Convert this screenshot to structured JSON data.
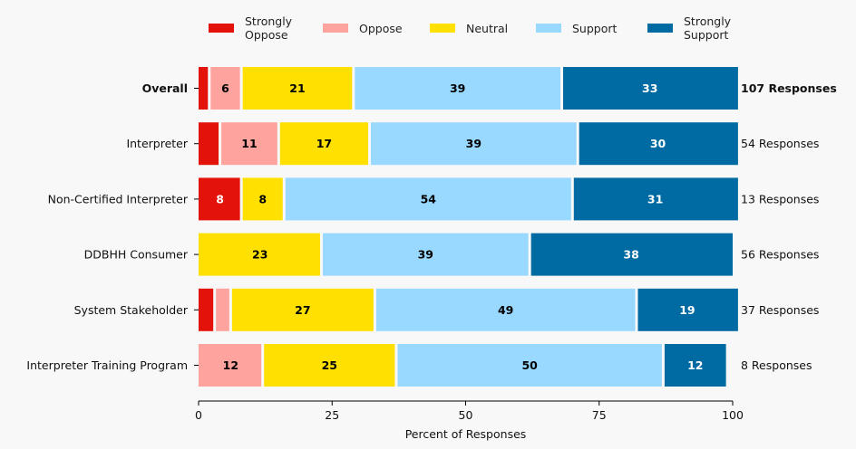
{
  "legend": [
    {
      "label": "Strongly\nOppose",
      "color": "#e3120b"
    },
    {
      "label": "Oppose",
      "color": "#ffa39e"
    },
    {
      "label": "Neutral",
      "color": "#ffe000"
    },
    {
      "label": "Support",
      "color": "#99d8ff"
    },
    {
      "label": "Strongly\nSupport",
      "color": "#006ba2"
    }
  ],
  "chart_data": {
    "type": "bar",
    "orientation": "horizontal-stacked",
    "xlabel": "Percent of Responses",
    "xlim": [
      0,
      100
    ],
    "xticks": [
      "0",
      "25",
      "50",
      "75",
      "100"
    ],
    "categories": [
      "Overall",
      "Interpreter",
      "Non-Certified Interpreter",
      "DDBHH Consumer",
      "System Stakeholder",
      "Interpreter Training Program"
    ],
    "bold_categories": [
      "Overall"
    ],
    "response_counts": [
      "107 Responses",
      "54 Responses",
      "13 Responses",
      "56 Responses",
      "37 Responses",
      "8 Responses"
    ],
    "series": [
      {
        "name": "Strongly Oppose",
        "color": "#e3120b",
        "label_color": "#ffffff",
        "values": [
          2,
          4,
          8,
          0,
          3,
          0
        ],
        "labels": [
          "",
          "",
          "8",
          "",
          "",
          ""
        ]
      },
      {
        "name": "Oppose",
        "color": "#ffa39e",
        "label_color": "#000000",
        "values": [
          6,
          11,
          0,
          0,
          3,
          12
        ],
        "labels": [
          "6",
          "11",
          "",
          "",
          "",
          "12"
        ]
      },
      {
        "name": "Neutral",
        "color": "#ffe000",
        "label_color": "#000000",
        "values": [
          21,
          17,
          8,
          23,
          27,
          25
        ],
        "labels": [
          "21",
          "17",
          "8",
          "23",
          "27",
          "25"
        ]
      },
      {
        "name": "Support",
        "color": "#99d8ff",
        "label_color": "#000000",
        "values": [
          39,
          39,
          54,
          39,
          49,
          50
        ],
        "labels": [
          "39",
          "39",
          "54",
          "39",
          "49",
          "50"
        ]
      },
      {
        "name": "Strongly Support",
        "color": "#006ba2",
        "label_color": "#ffffff",
        "values": [
          33,
          30,
          31,
          38,
          19,
          12
        ],
        "labels": [
          "33",
          "30",
          "31",
          "38",
          "19",
          "12"
        ]
      }
    ]
  }
}
